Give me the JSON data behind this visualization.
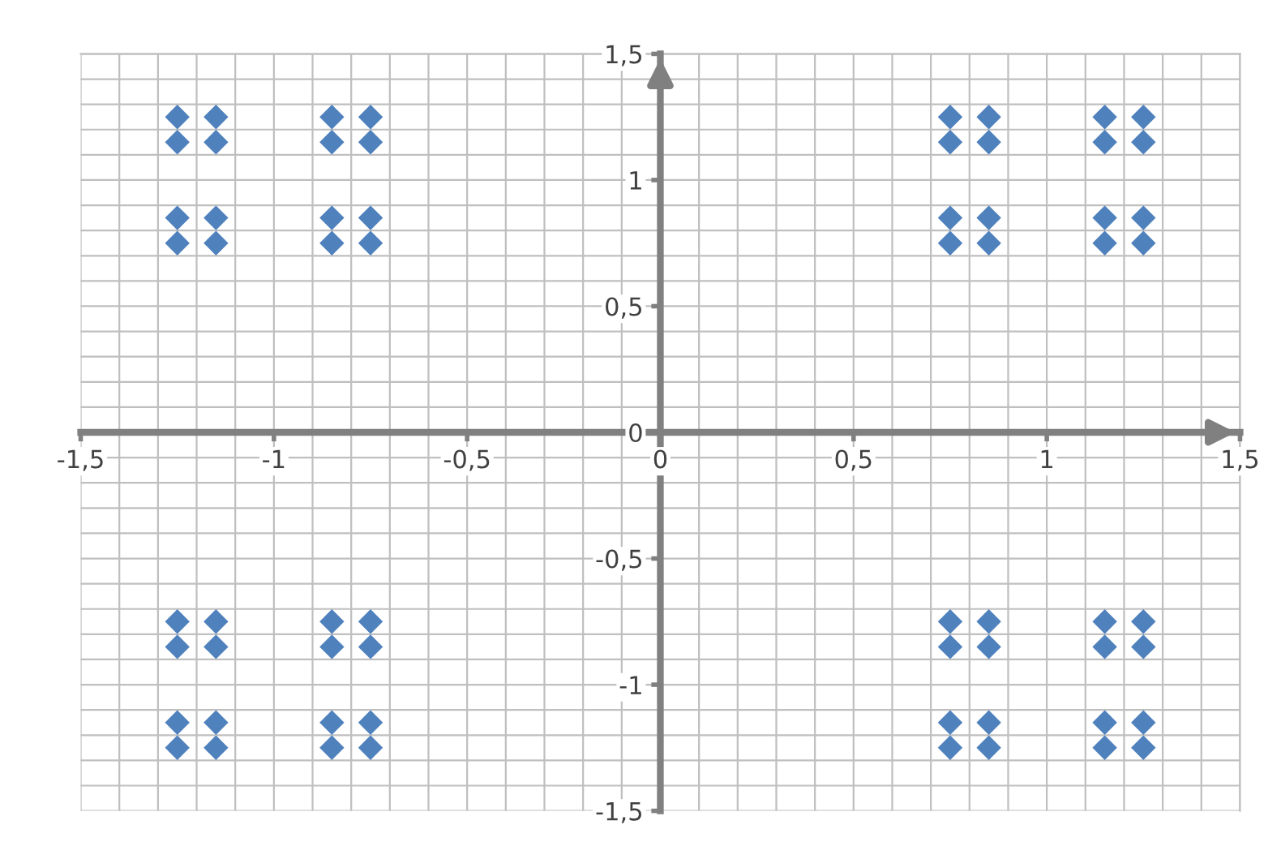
{
  "chart_data": {
    "type": "scatter",
    "marker": "diamond",
    "grid": true,
    "series": [
      {
        "color": "#4f81bd",
        "x": [
          -1.25,
          -1.25,
          -1.25,
          -1.25,
          -1.15,
          -1.15,
          -1.15,
          -1.15,
          -0.85,
          -0.85,
          -0.85,
          -0.85,
          -0.75,
          -0.75,
          -0.75,
          -0.75,
          0.75,
          0.75,
          0.75,
          0.75,
          0.85,
          0.85,
          0.85,
          0.85,
          1.15,
          1.15,
          1.15,
          1.15,
          1.25,
          1.25,
          1.25,
          1.25,
          -1.25,
          -1.25,
          -1.25,
          -1.25,
          -1.15,
          -1.15,
          -1.15,
          -1.15,
          -0.85,
          -0.85,
          -0.85,
          -0.85,
          -0.75,
          -0.75,
          -0.75,
          -0.75,
          0.75,
          0.75,
          0.75,
          0.75,
          0.85,
          0.85,
          0.85,
          0.85,
          1.15,
          1.15,
          1.15,
          1.15,
          1.25,
          1.25,
          1.25,
          1.25
        ],
        "values": [
          1.25,
          1.15,
          0.85,
          0.75,
          1.25,
          1.15,
          0.85,
          0.75,
          1.25,
          1.15,
          0.85,
          0.75,
          1.25,
          1.15,
          0.85,
          0.75,
          1.25,
          1.15,
          0.85,
          0.75,
          1.25,
          1.15,
          0.85,
          0.75,
          1.25,
          1.15,
          0.85,
          0.75,
          1.25,
          1.15,
          0.85,
          0.75,
          -0.75,
          -0.85,
          -1.15,
          -1.25,
          -0.75,
          -0.85,
          -1.15,
          -1.25,
          -0.75,
          -0.85,
          -1.15,
          -1.25,
          -0.75,
          -0.85,
          -1.15,
          -1.25,
          -0.75,
          -0.85,
          -1.15,
          -1.25,
          -0.75,
          -0.85,
          -1.15,
          -1.25,
          -0.75,
          -0.85,
          -1.15,
          -1.25,
          -0.75,
          -0.85,
          -1.15,
          -1.25
        ]
      }
    ],
    "xlim": [
      -1.5,
      1.5
    ],
    "ylim": [
      -1.5,
      1.5
    ],
    "xticks": [
      {
        "value": -1.5,
        "label": "-1,5"
      },
      {
        "value": -1,
        "label": "-1"
      },
      {
        "value": -0.5,
        "label": "-0,5"
      },
      {
        "value": 0,
        "label": "0"
      },
      {
        "value": 0.5,
        "label": "0,5"
      },
      {
        "value": 1,
        "label": "1"
      },
      {
        "value": 1.5,
        "label": "1,5"
      }
    ],
    "yticks": [
      {
        "value": -1.5,
        "label": "-1,5"
      },
      {
        "value": -1,
        "label": "-1"
      },
      {
        "value": -0.5,
        "label": "-0,5"
      },
      {
        "value": 0,
        "label": "0"
      },
      {
        "value": 0.5,
        "label": "0,5"
      },
      {
        "value": 1,
        "label": "1"
      },
      {
        "value": 1.5,
        "label": "1,5"
      }
    ]
  }
}
